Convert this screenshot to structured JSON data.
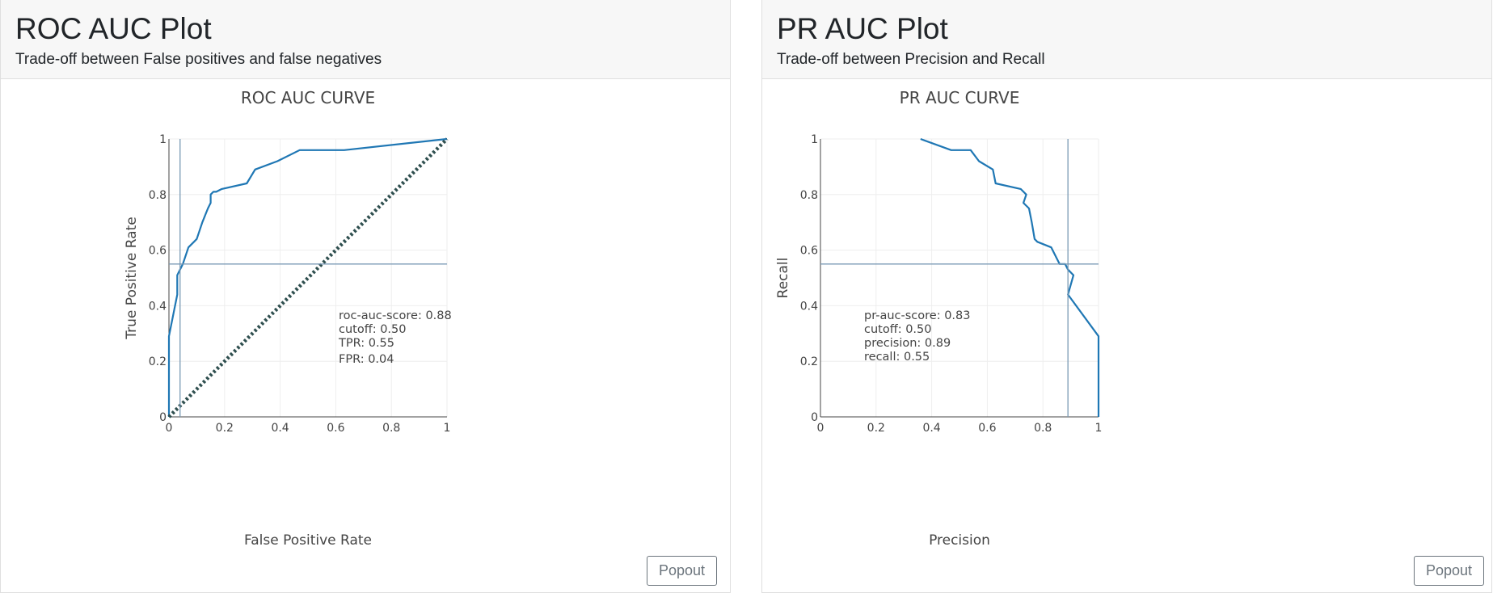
{
  "panels": [
    {
      "title": "ROC AUC Plot",
      "subtitle": "Trade-off between False positives and false negatives",
      "popout_label": "Popout"
    },
    {
      "title": "PR AUC Plot",
      "subtitle": "Trade-off between Precision and Recall",
      "popout_label": "Popout"
    }
  ],
  "chart_data": [
    {
      "type": "line",
      "title": "ROC AUC CURVE",
      "xlabel": "False Positive Rate",
      "ylabel": "True Positive Rate",
      "xlim": [
        0,
        1
      ],
      "ylim": [
        0,
        1
      ],
      "xticks": [
        "0",
        "0.2",
        "0.4",
        "0.6",
        "0.8",
        "1"
      ],
      "yticks": [
        "0",
        "0.2",
        "0.4",
        "0.6",
        "0.8",
        "1"
      ],
      "grid": true,
      "series": [
        {
          "style": "solid",
          "color": "#1f77b4",
          "x": [
            0,
            0,
            0.03,
            0.03,
            0.05,
            0.07,
            0.09,
            0.1,
            0.12,
            0.14,
            0.15,
            0.15,
            0.16,
            0.17,
            0.19,
            0.28,
            0.31,
            0.39,
            0.47,
            0.63,
            1.0
          ],
          "y": [
            0,
            0.29,
            0.44,
            0.51,
            0.55,
            0.61,
            0.63,
            0.64,
            0.7,
            0.75,
            0.77,
            0.8,
            0.81,
            0.81,
            0.82,
            0.84,
            0.89,
            0.92,
            0.96,
            0.96,
            1.0
          ]
        },
        {
          "style": "dotted",
          "color": "#2f4f4f",
          "x": [
            0,
            1
          ],
          "y": [
            0,
            1
          ]
        }
      ],
      "crosshair": {
        "x": 0.04,
        "y": 0.55,
        "color": "#7a9ab5"
      },
      "annotations": [
        "roc-auc-score: 0.88",
        "cutoff: 0.50",
        "TPR: 0.55",
        "FPR: 0.04"
      ]
    },
    {
      "type": "line",
      "title": "PR AUC CURVE",
      "xlabel": "Precision",
      "ylabel": "Recall",
      "xlim": [
        0,
        1
      ],
      "ylim": [
        0,
        1
      ],
      "xticks": [
        "0",
        "0.2",
        "0.4",
        "0.6",
        "0.8",
        "1"
      ],
      "yticks": [
        "0",
        "0.2",
        "0.4",
        "0.6",
        "0.8",
        "1"
      ],
      "grid": true,
      "series": [
        {
          "style": "solid",
          "color": "#1f77b4",
          "x": [
            0.36,
            0.47,
            0.54,
            0.57,
            0.62,
            0.63,
            0.72,
            0.74,
            0.73,
            0.75,
            0.76,
            0.77,
            0.78,
            0.83,
            0.86,
            0.88,
            0.89,
            0.91,
            0.89,
            1.0,
            1.0
          ],
          "y": [
            1.0,
            0.96,
            0.96,
            0.92,
            0.89,
            0.84,
            0.82,
            0.8,
            0.77,
            0.75,
            0.7,
            0.64,
            0.63,
            0.61,
            0.55,
            0.55,
            0.53,
            0.51,
            0.44,
            0.29,
            0
          ]
        }
      ],
      "crosshair": {
        "x": 0.89,
        "y": 0.55,
        "color": "#7a9ab5"
      },
      "annotations": [
        "pr-auc-score: 0.83",
        "cutoff: 0.50",
        "precision: 0.89",
        "recall: 0.55"
      ]
    }
  ]
}
